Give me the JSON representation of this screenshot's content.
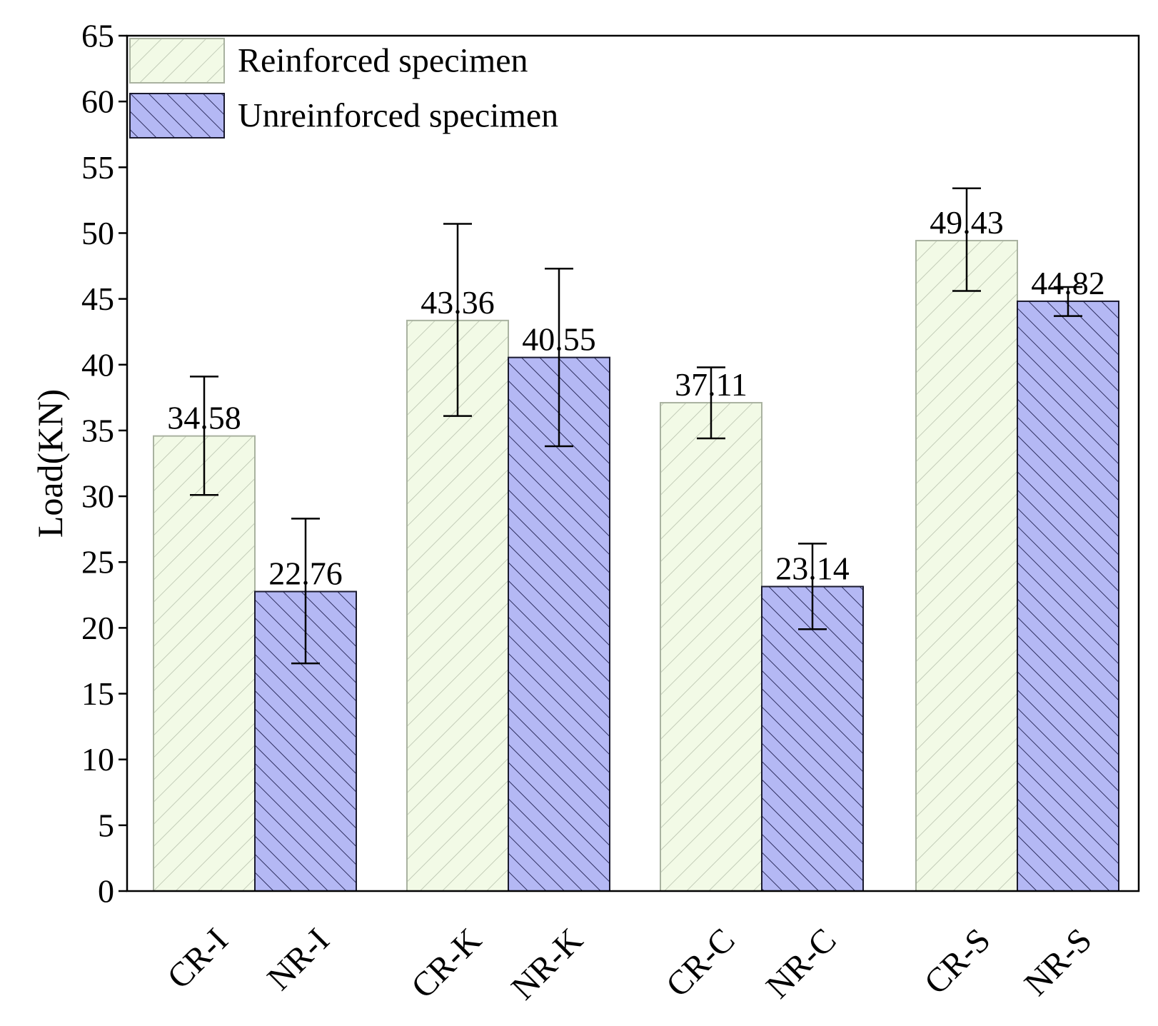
{
  "chart_data": {
    "type": "bar",
    "title": "",
    "xlabel": "",
    "ylabel": "Load(KN)",
    "ylim": [
      0,
      65
    ],
    "yticks": [
      0,
      5,
      10,
      15,
      20,
      25,
      30,
      35,
      40,
      45,
      50,
      55,
      60,
      65
    ],
    "grid": false,
    "legend_position": "top-left",
    "groups": [
      "I",
      "K",
      "C",
      "S"
    ],
    "series": [
      {
        "name": "Reinforced specimen",
        "color": "#f2fae6",
        "hatch_color": "#b8c2ad",
        "categories": [
          "CR-I",
          "CR-K",
          "CR-C",
          "CR-S"
        ],
        "values": [
          34.58,
          43.36,
          37.11,
          49.43
        ],
        "value_labels": [
          "34.58",
          "43.36",
          "37.11",
          "49.43"
        ],
        "error_low": [
          30.1,
          36.1,
          34.4,
          45.6
        ],
        "error_high": [
          39.1,
          50.7,
          39.8,
          53.4
        ]
      },
      {
        "name": "Unreinforced specimen",
        "color": "#b4b8f4",
        "hatch_color": "#202050",
        "categories": [
          "NR-I",
          "NR-K",
          "NR-C",
          "NR-S"
        ],
        "values": [
          22.76,
          40.55,
          23.14,
          44.82
        ],
        "value_labels": [
          "22.76",
          "40.55",
          "23.14",
          "44.82"
        ],
        "error_low": [
          17.3,
          33.8,
          19.9,
          43.7
        ],
        "error_high": [
          28.3,
          47.3,
          26.4,
          45.9
        ]
      }
    ]
  }
}
